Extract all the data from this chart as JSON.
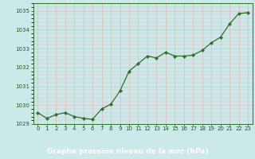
{
  "x": [
    0,
    1,
    2,
    3,
    4,
    5,
    6,
    7,
    8,
    9,
    10,
    11,
    12,
    13,
    14,
    15,
    16,
    17,
    18,
    19,
    20,
    21,
    22,
    23
  ],
  "y": [
    1029.6,
    1029.3,
    1029.5,
    1029.6,
    1029.4,
    1029.3,
    1029.25,
    1029.8,
    1030.05,
    1030.75,
    1031.8,
    1032.2,
    1032.6,
    1032.5,
    1032.8,
    1032.6,
    1032.6,
    1032.65,
    1032.9,
    1033.3,
    1033.6,
    1034.3,
    1034.85,
    1034.9
  ],
  "line_color": "#2d6e2d",
  "marker_color": "#2d6e2d",
  "bg_color": "#cce9e9",
  "plot_bg_color": "#cce9e9",
  "grid_color": "#e8c8c8",
  "xlabel": "Graphe pression niveau de la mer (hPa)",
  "xlabel_color": "#1a5c1a",
  "tick_color": "#1a5c1a",
  "ylim": [
    1029.0,
    1035.4
  ],
  "xlim": [
    -0.5,
    23.5
  ],
  "yticks": [
    1029,
    1030,
    1031,
    1032,
    1033,
    1034,
    1035
  ],
  "xticks": [
    0,
    1,
    2,
    3,
    4,
    5,
    6,
    7,
    8,
    9,
    10,
    11,
    12,
    13,
    14,
    15,
    16,
    17,
    18,
    19,
    20,
    21,
    22,
    23
  ],
  "grid_major_color": "#e0b8b8",
  "grid_minor_y_color": "#dac0c0",
  "bottom_bar_color": "#2d6e2d",
  "bottom_bar_height": 0.12
}
